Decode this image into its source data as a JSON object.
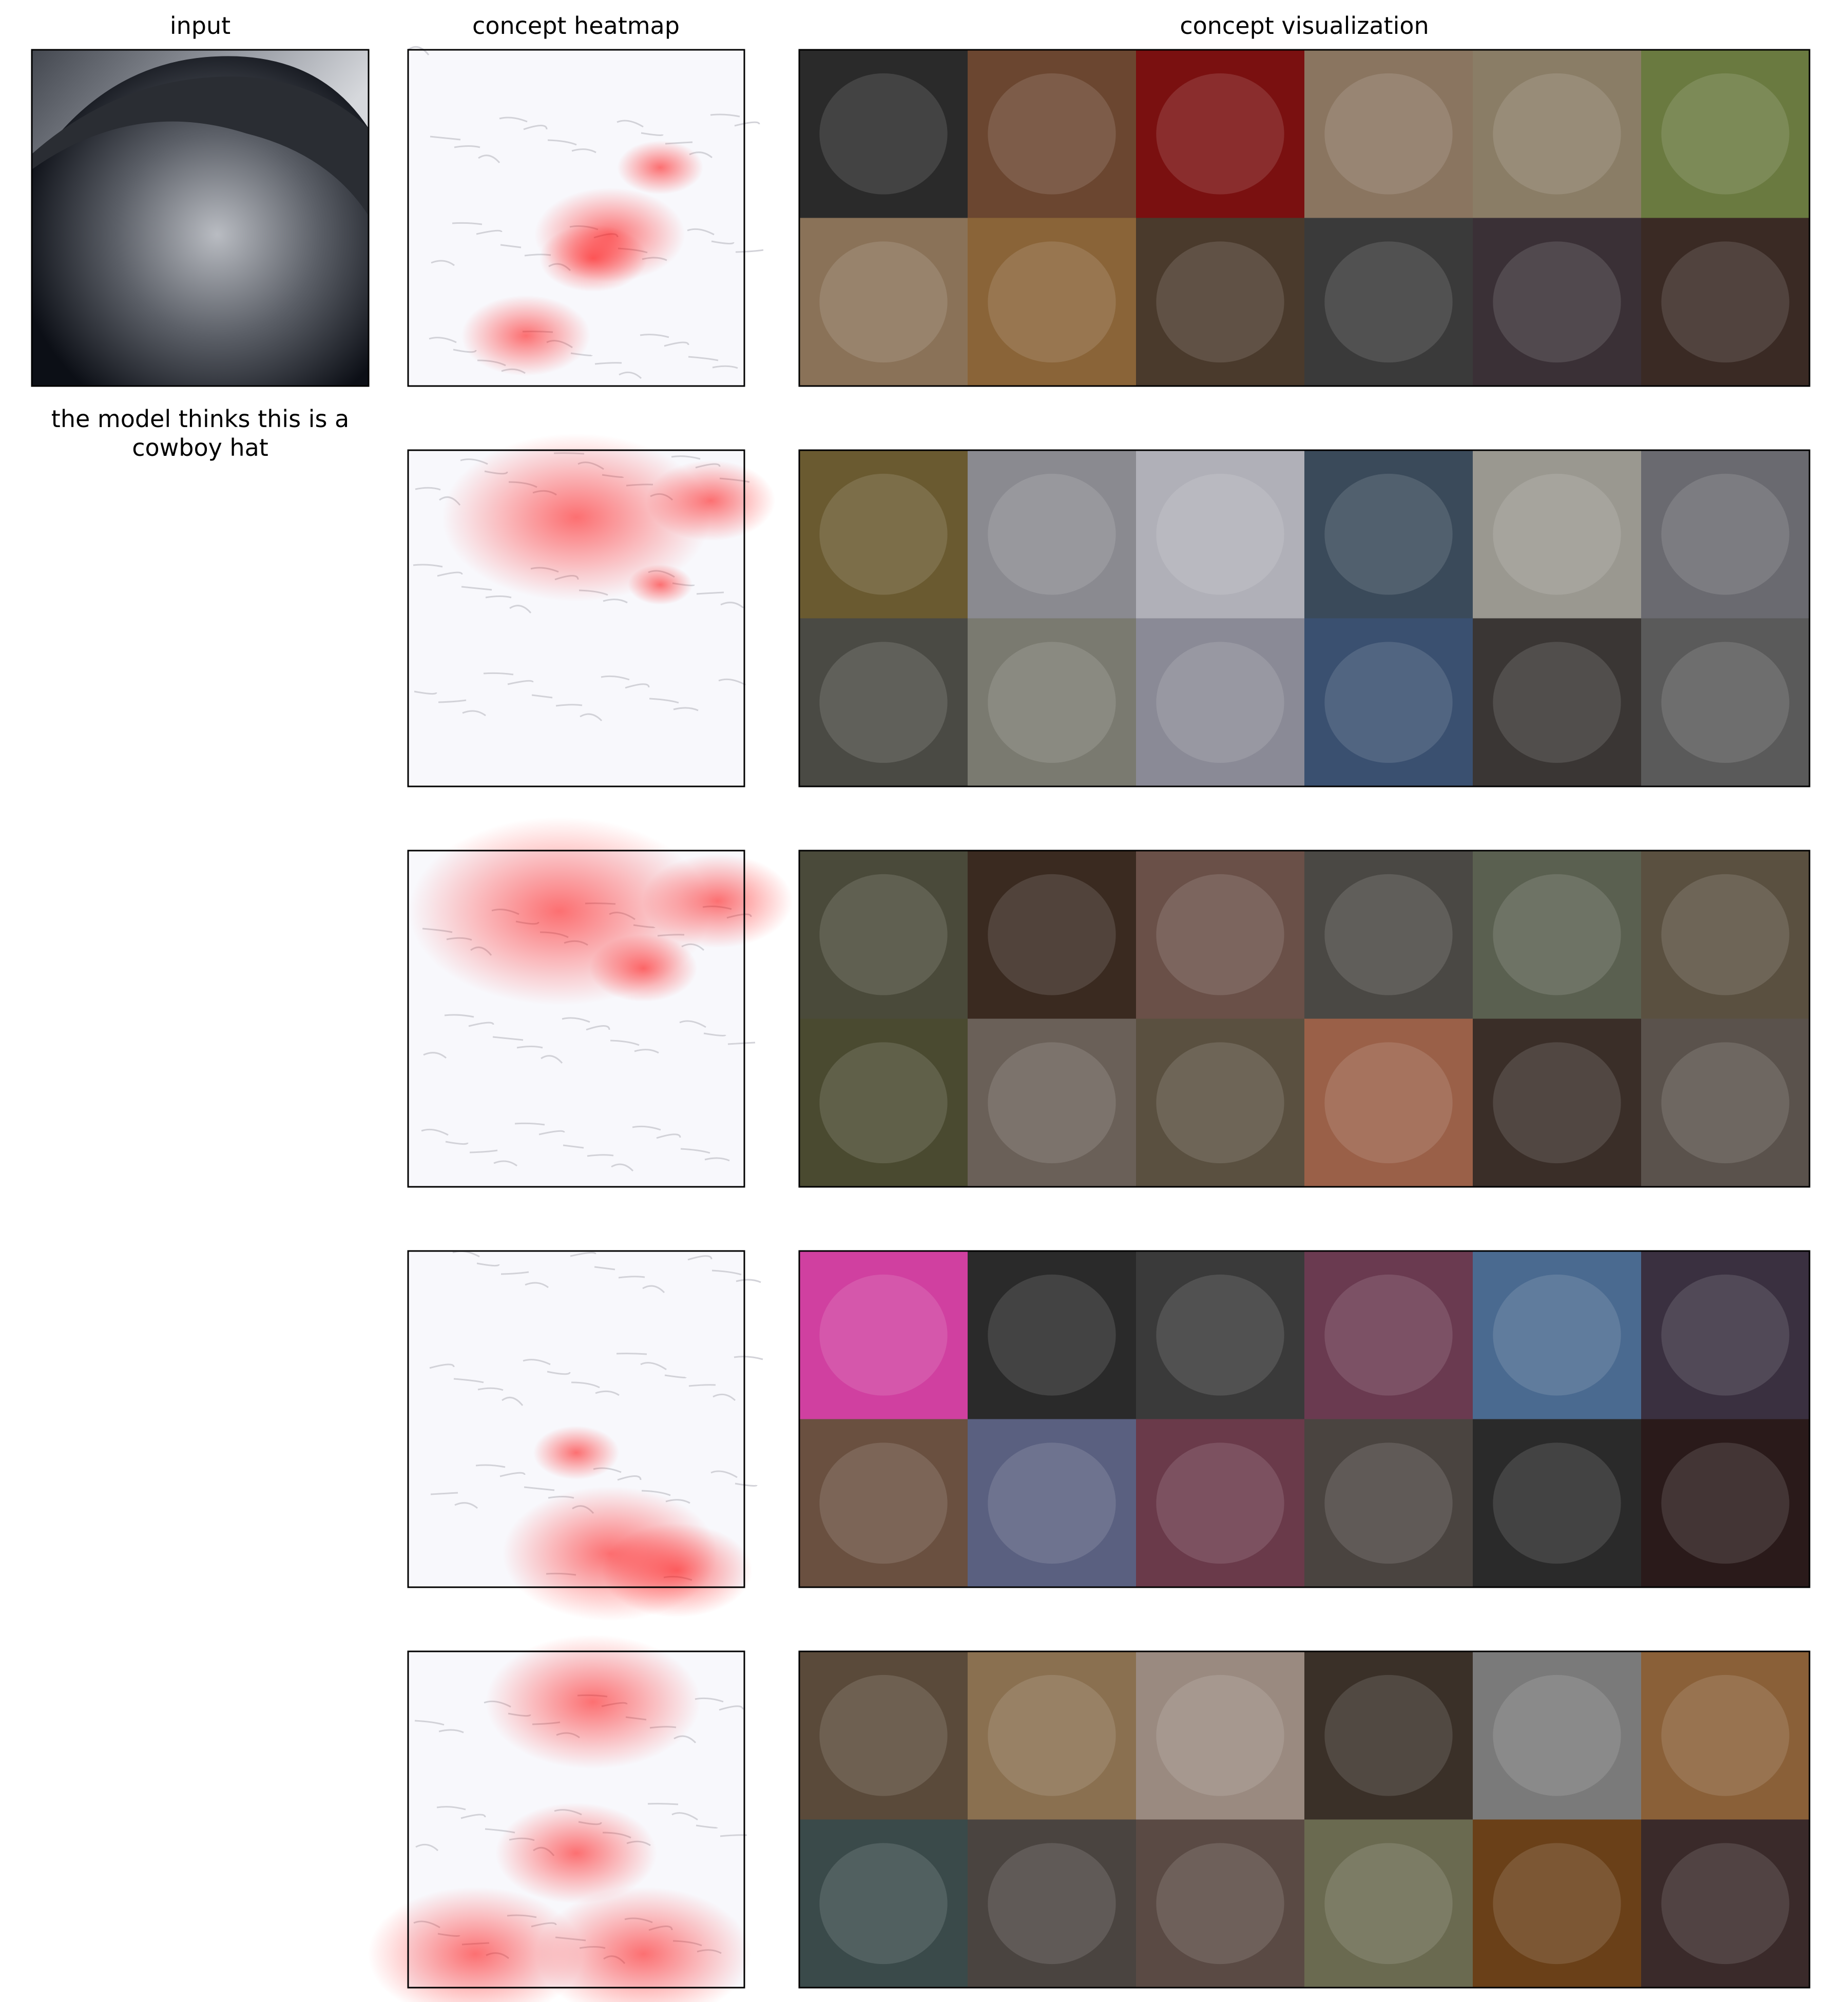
{
  "header": {
    "input": "input",
    "heatmap": "concept heatmap",
    "visualization": "concept visualization"
  },
  "caption": [
    "the model thinks this is a",
    "cowboy hat"
  ]
}
